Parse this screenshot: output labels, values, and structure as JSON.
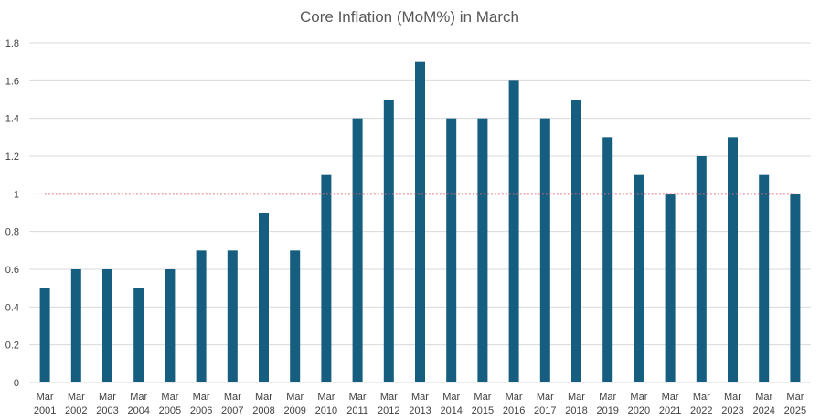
{
  "chart_data": {
    "type": "bar",
    "title": "Core Inflation (MoM%) in March",
    "categories": [
      [
        "Mar",
        "2001"
      ],
      [
        "Mar",
        "2002"
      ],
      [
        "Mar",
        "2003"
      ],
      [
        "Mar",
        "2004"
      ],
      [
        "Mar",
        "2005"
      ],
      [
        "Mar",
        "2006"
      ],
      [
        "Mar",
        "2007"
      ],
      [
        "Mar",
        "2008"
      ],
      [
        "Mar",
        "2009"
      ],
      [
        "Mar",
        "2010"
      ],
      [
        "Mar",
        "2011"
      ],
      [
        "Mar",
        "2012"
      ],
      [
        "Mar",
        "2013"
      ],
      [
        "Mar",
        "2014"
      ],
      [
        "Mar",
        "2015"
      ],
      [
        "Mar",
        "2016"
      ],
      [
        "Mar",
        "2017"
      ],
      [
        "Mar",
        "2018"
      ],
      [
        "Mar",
        "2019"
      ],
      [
        "Mar",
        "2020"
      ],
      [
        "Mar",
        "2021"
      ],
      [
        "Mar",
        "2022"
      ],
      [
        "Mar",
        "2023"
      ],
      [
        "Mar",
        "2024"
      ],
      [
        "Mar",
        "2025"
      ]
    ],
    "values": [
      0.5,
      0.6,
      0.6,
      0.5,
      0.6,
      0.7,
      0.7,
      0.9,
      0.7,
      1.1,
      1.4,
      1.5,
      1.7,
      1.4,
      1.4,
      1.6,
      1.4,
      1.5,
      1.3,
      1.1,
      1.0,
      1.2,
      1.3,
      1.1,
      1.0
    ],
    "yticks": [
      "0",
      "0.2",
      "0.4",
      "0.6",
      "0.8",
      "1",
      "1.2",
      "1.4",
      "1.6",
      "1.8"
    ],
    "ylim": [
      0,
      1.8
    ],
    "reference_line": {
      "value": 1.0,
      "style": "dotted",
      "color": "#e8636f"
    },
    "grid": true,
    "legend": "none",
    "colors": {
      "bar": "#155e7f",
      "grid": "#d9d9d9",
      "text": "#404040",
      "title": "#595959"
    }
  }
}
